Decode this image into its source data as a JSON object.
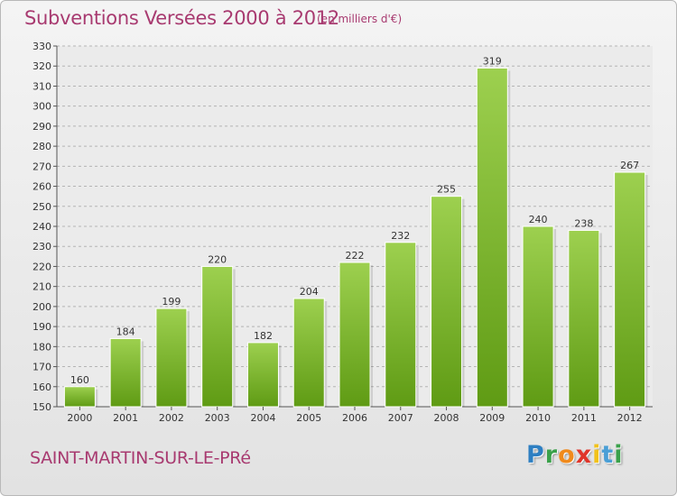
{
  "header": {
    "title": "Subventions Versées 2000 à 2012",
    "subtitle": "(en milliers d'€)"
  },
  "footer": {
    "commune": "SAINT-MARTIN-SUR-LE-PRé",
    "logo_letters": [
      "P",
      "r",
      "o",
      "x",
      "i",
      "t",
      "i"
    ],
    "logo_colors": [
      "#2e7fc2",
      "#3aa14a",
      "#f08a1c",
      "#e0352a",
      "#f2c21a",
      "#4a9fd6",
      "#3aa14a"
    ]
  },
  "colors": {
    "accent": "#a83a70",
    "bar_light": "#9dd04f",
    "bar_dark": "#5f9b14",
    "grid": "#b4b4b4"
  },
  "chart_data": {
    "type": "bar",
    "title": "Subventions Versées 2000 à 2012",
    "subtitle": "(en milliers d'€)",
    "xlabel": "",
    "ylabel": "",
    "categories": [
      "2000",
      "2001",
      "2002",
      "2003",
      "2004",
      "2005",
      "2006",
      "2007",
      "2008",
      "2009",
      "2010",
      "2011",
      "2012"
    ],
    "values": [
      160,
      184,
      199,
      220,
      182,
      204,
      222,
      232,
      255,
      319,
      240,
      238,
      267
    ],
    "ylim": [
      150,
      330
    ],
    "ytick_step": 10,
    "grid": true,
    "legend": "none",
    "data_labels": true
  }
}
